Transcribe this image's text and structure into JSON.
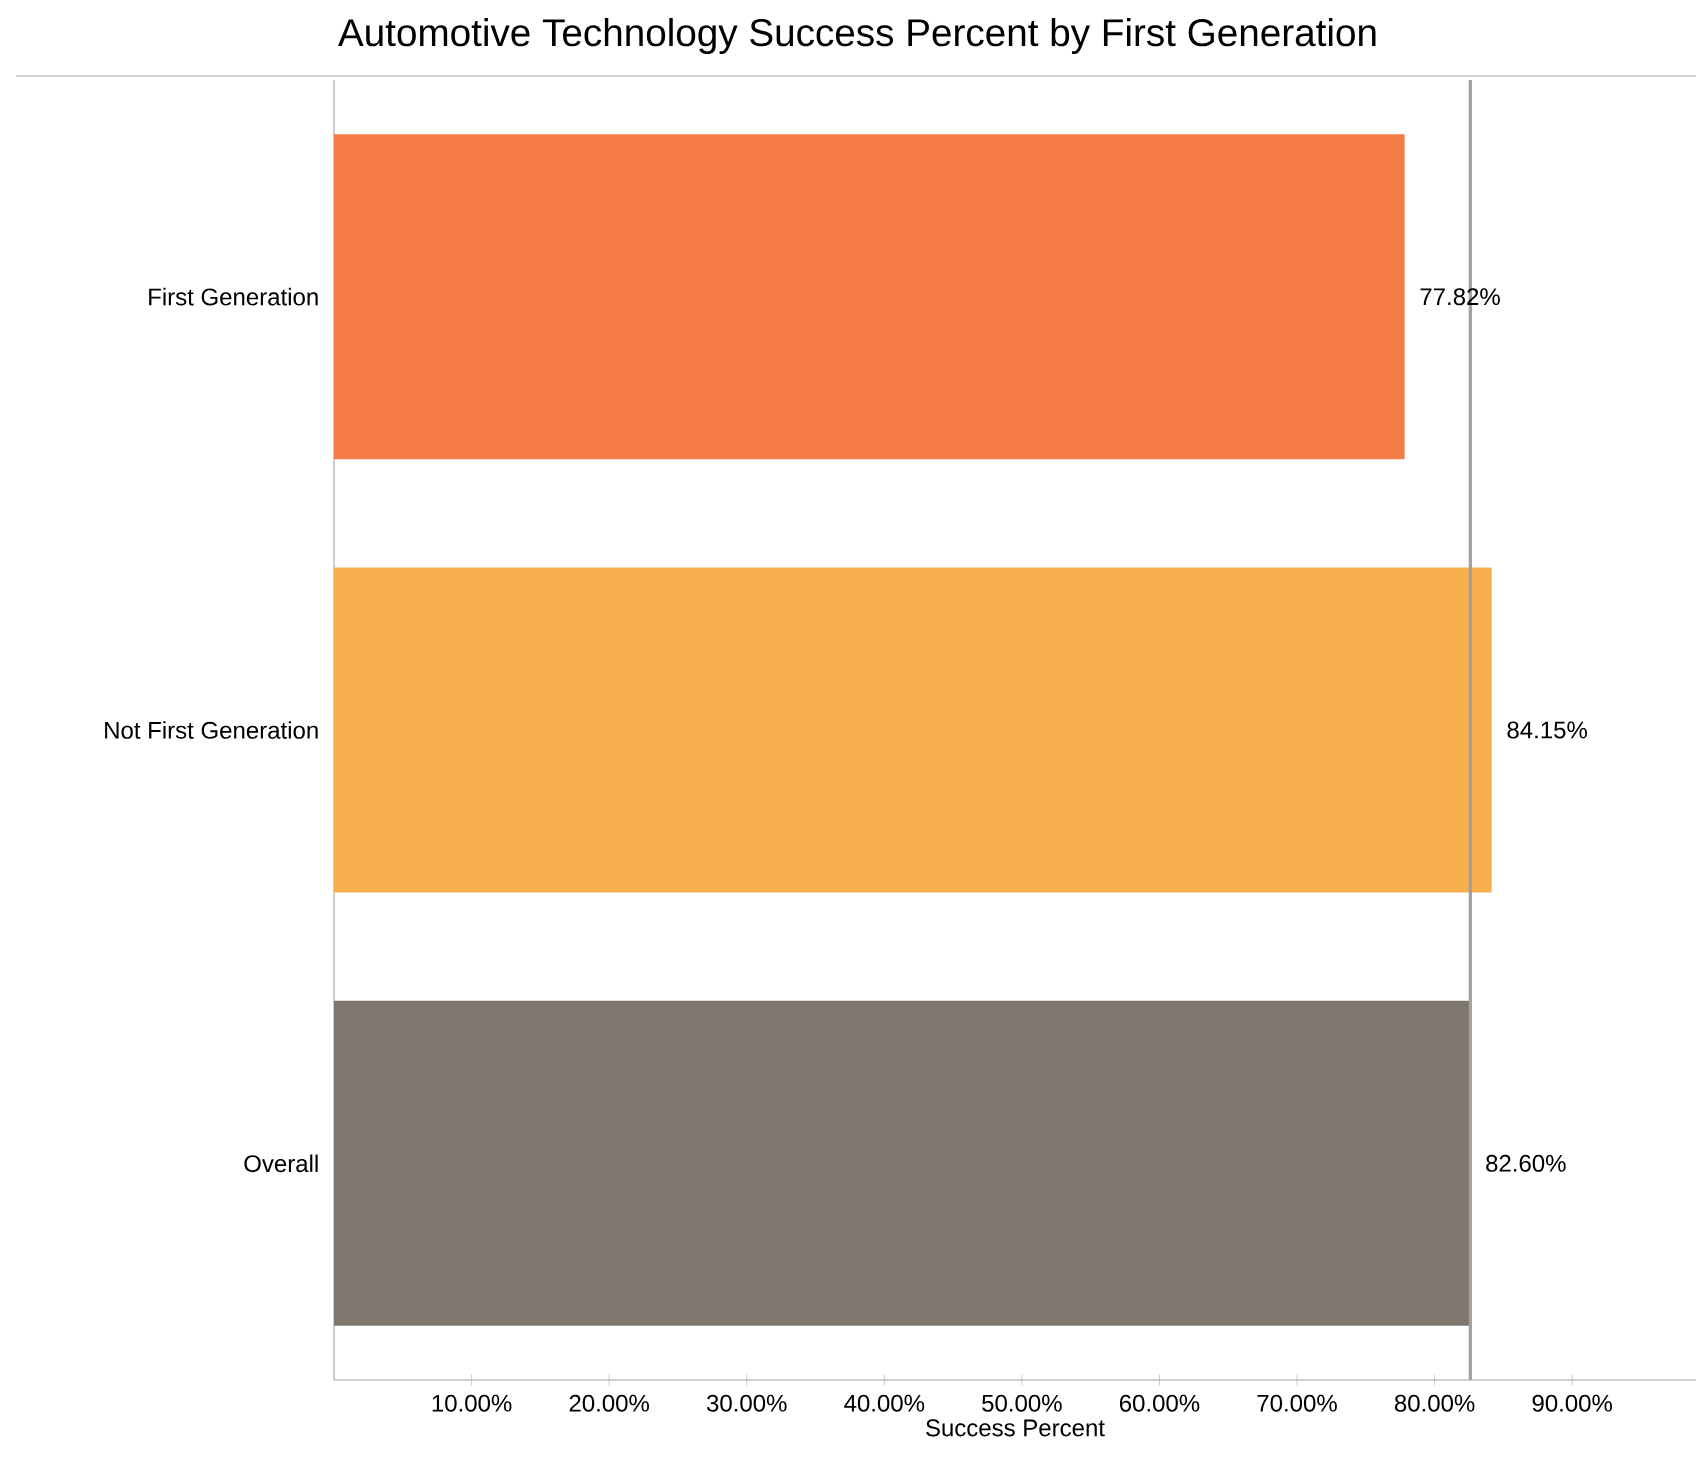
{
  "chart_data": {
    "type": "bar",
    "orientation": "horizontal",
    "title": "Automotive Technology Success Percent by First Generation",
    "xlabel": "Success Percent",
    "categories": [
      "First Generation",
      "Not First Generation",
      "Overall"
    ],
    "values": [
      77.82,
      84.15,
      82.6
    ],
    "colors": [
      "#f47b45",
      "#f8b04f",
      "#7f776d"
    ],
    "value_labels": [
      "77.82%",
      "84.15%",
      "82.60%"
    ],
    "xlim": [
      0,
      99
    ],
    "xticks": [
      {
        "value": 10,
        "label": "10.00%"
      },
      {
        "value": 20,
        "label": "20.00%"
      },
      {
        "value": 30,
        "label": "30.00%"
      },
      {
        "value": 40,
        "label": "40.00%"
      },
      {
        "value": 50,
        "label": "50.00%"
      },
      {
        "value": 60,
        "label": "60.00%"
      },
      {
        "value": 70,
        "label": "70.00%"
      },
      {
        "value": 80,
        "label": "80.00%"
      },
      {
        "value": 90,
        "label": "90.00%"
      }
    ],
    "ref_lines": [
      {
        "axis": "x",
        "value": 82.6,
        "color": "#a0a0a0"
      }
    ]
  }
}
